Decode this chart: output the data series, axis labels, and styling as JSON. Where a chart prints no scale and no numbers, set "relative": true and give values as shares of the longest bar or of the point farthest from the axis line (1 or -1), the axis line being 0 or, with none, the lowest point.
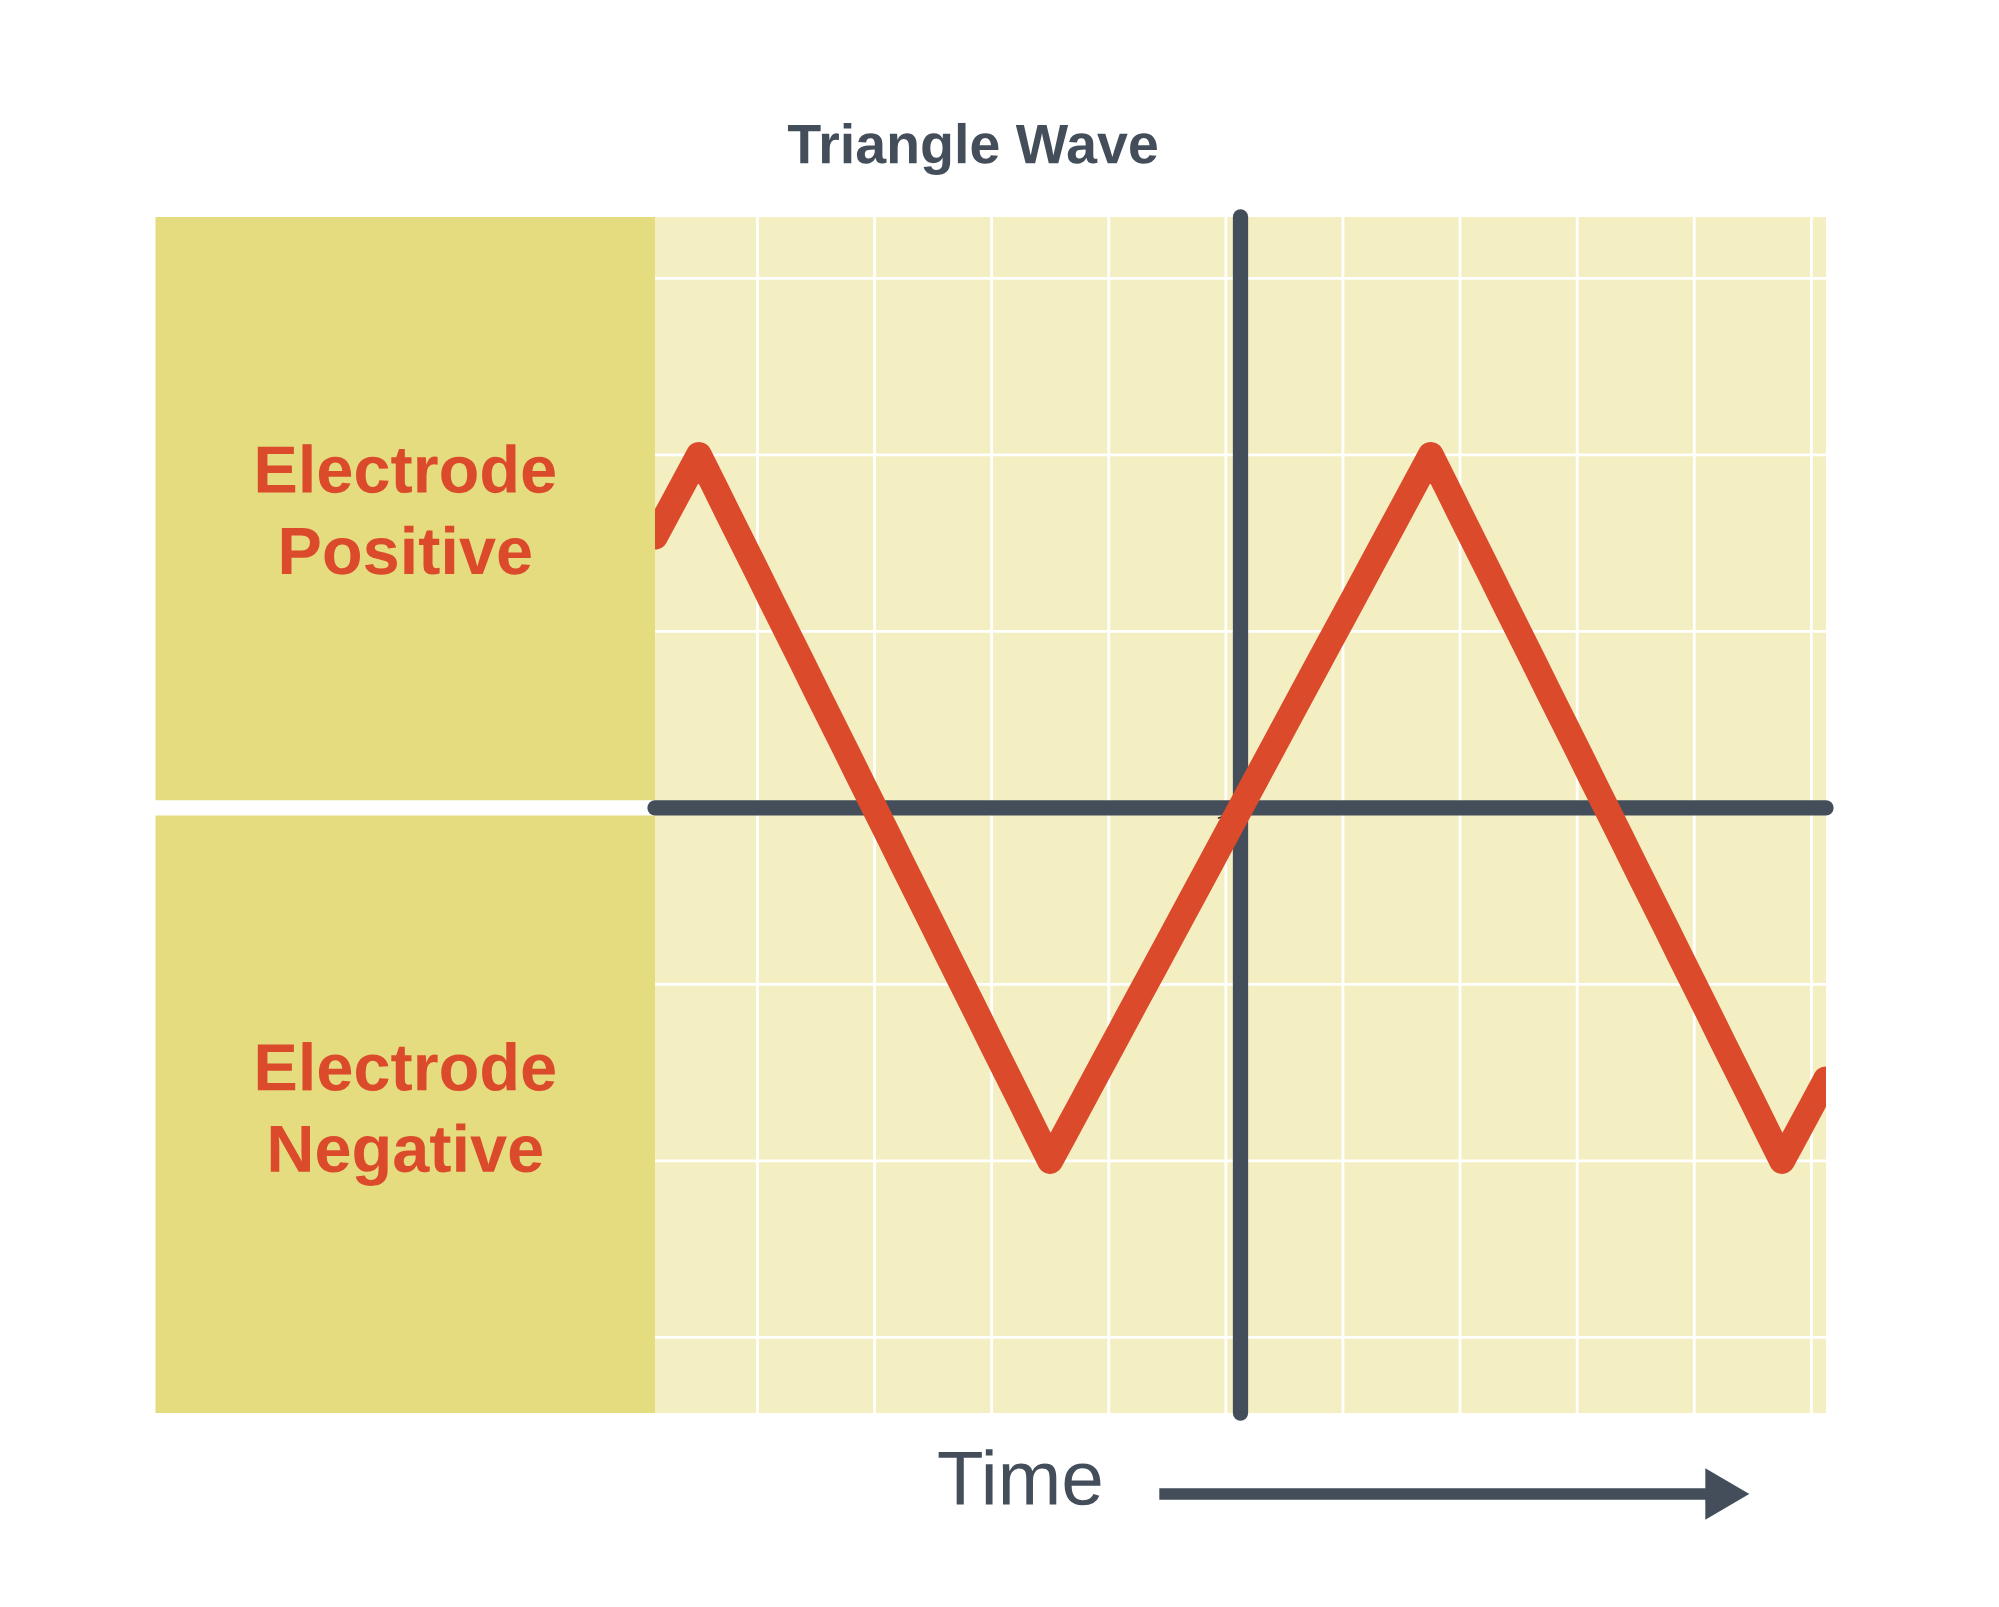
{
  "chart_data": [
    {
      "type": "other",
      "annotations": [
        "Electrode\nPositive",
        "Electrode\nNegative"
      ]
    },
    {
      "type": "line",
      "title": "Triangle Wave",
      "xlabel": "Time",
      "relative": true,
      "grid": true,
      "color": "#db4a2b",
      "categories": [
        null,
        null,
        null,
        null,
        null,
        null,
        null,
        null,
        null,
        null,
        null,
        null,
        null,
        null,
        null,
        null,
        null,
        null,
        null,
        null,
        null,
        null,
        null,
        null,
        null,
        null,
        null,
        null,
        null,
        null,
        null,
        null,
        null,
        null,
        null,
        null,
        null,
        null,
        null,
        null,
        null,
        null,
        null,
        null,
        null,
        null,
        null,
        null,
        null,
        null,
        null,
        null,
        null,
        null,
        null,
        null,
        null,
        null,
        null,
        null,
        null,
        null,
        null,
        null,
        null,
        null,
        null,
        null,
        null,
        null,
        null,
        null,
        null,
        null,
        null,
        null,
        null,
        null,
        null,
        null,
        null
      ],
      "values": [
        0.769,
        0.846,
        0.923,
        1,
        0.917,
        0.833,
        0.75,
        0.667,
        0.583,
        0.5,
        0.417,
        0.333,
        0.25,
        0.167,
        0.083,
        0,
        -0.083,
        -0.167,
        -0.25,
        -0.333,
        -0.417,
        -0.5,
        -0.583,
        -0.667,
        -0.75,
        -0.833,
        -0.917,
        -1,
        -0.923,
        -0.846,
        -0.769,
        -0.692,
        -0.615,
        -0.538,
        -0.462,
        -0.385,
        -0.308,
        -0.231,
        -0.154,
        -0.077,
        0,
        0.077,
        0.154,
        0.231,
        0.308,
        0.385,
        0.462,
        0.538,
        0.615,
        0.692,
        0.769,
        0.846,
        0.923,
        1,
        0.917,
        0.833,
        0.75,
        0.667,
        0.583,
        0.5,
        0.417,
        0.333,
        0.25,
        0.167,
        0.083,
        0,
        -0.083,
        -0.167,
        -0.25,
        -0.333,
        -0.417,
        -0.5,
        -0.583,
        -0.667,
        -0.75,
        -0.833,
        -0.917,
        -1,
        -0.923,
        -0.846,
        -0.769
      ]
    }
  ]
}
